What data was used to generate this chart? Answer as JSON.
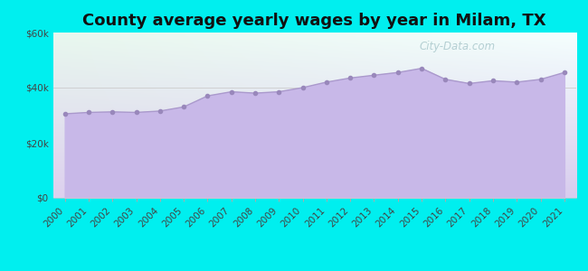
{
  "title": "County average yearly wages by year in Milam, TX",
  "years": [
    2000,
    2001,
    2002,
    2003,
    2004,
    2005,
    2006,
    2007,
    2008,
    2009,
    2010,
    2011,
    2012,
    2013,
    2014,
    2015,
    2016,
    2017,
    2018,
    2019,
    2020,
    2021
  ],
  "wages": [
    30500,
    31000,
    31200,
    31000,
    31500,
    33000,
    37000,
    38500,
    38000,
    38500,
    40000,
    42000,
    43500,
    44500,
    45500,
    47000,
    43000,
    41500,
    42500,
    42000,
    43000,
    45500
  ],
  "ylim": [
    0,
    60000
  ],
  "yticks": [
    0,
    20000,
    40000,
    60000
  ],
  "ytick_labels": [
    "$0",
    "$20k",
    "$40k",
    "$60k"
  ],
  "line_color": "#aa99cc",
  "fill_color_top": "#c8b8e8",
  "fill_color_bottom": "#c8b8e8",
  "marker_color": "#9988bb",
  "bg_color_outer": "#00efef",
  "bg_grad_topleft": "#e8f8ee",
  "bg_grad_bottomright": "#d8ccee",
  "title_fontsize": 13,
  "tick_fontsize": 7.5,
  "watermark": "City-Data.com"
}
